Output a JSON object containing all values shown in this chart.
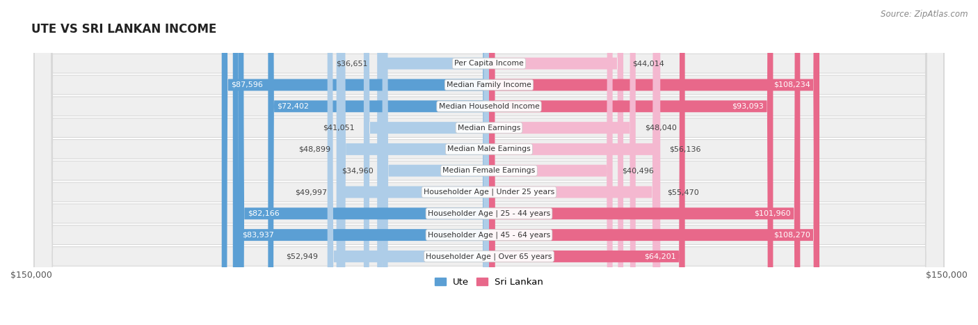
{
  "title": "UTE VS SRI LANKAN INCOME",
  "source": "Source: ZipAtlas.com",
  "categories": [
    "Per Capita Income",
    "Median Family Income",
    "Median Household Income",
    "Median Earnings",
    "Median Male Earnings",
    "Median Female Earnings",
    "Householder Age | Under 25 years",
    "Householder Age | 25 - 44 years",
    "Householder Age | 45 - 64 years",
    "Householder Age | Over 65 years"
  ],
  "ute_values": [
    36651,
    87596,
    72402,
    41051,
    48899,
    34960,
    49997,
    82166,
    83937,
    52949
  ],
  "sri_lankan_values": [
    44014,
    108234,
    93093,
    48040,
    56136,
    40496,
    55470,
    101960,
    108270,
    64201
  ],
  "ute_labels": [
    "$36,651",
    "$87,596",
    "$72,402",
    "$41,051",
    "$48,899",
    "$34,960",
    "$49,997",
    "$82,166",
    "$83,937",
    "$52,949"
  ],
  "sri_lankan_labels": [
    "$44,014",
    "$108,234",
    "$93,093",
    "$48,040",
    "$56,136",
    "$40,496",
    "$55,470",
    "$101,960",
    "$108,270",
    "$64,201"
  ],
  "ute_color_light": "#aecde8",
  "ute_color_strong": "#5b9fd4",
  "sri_lankan_color_light": "#f4b8d0",
  "sri_lankan_color_strong": "#e8688a",
  "max_value": 150000,
  "legend_ute": "Ute",
  "legend_sri_lankan": "Sri Lankan",
  "row_bg": "#efefef",
  "row_border": "#d8d8d8"
}
